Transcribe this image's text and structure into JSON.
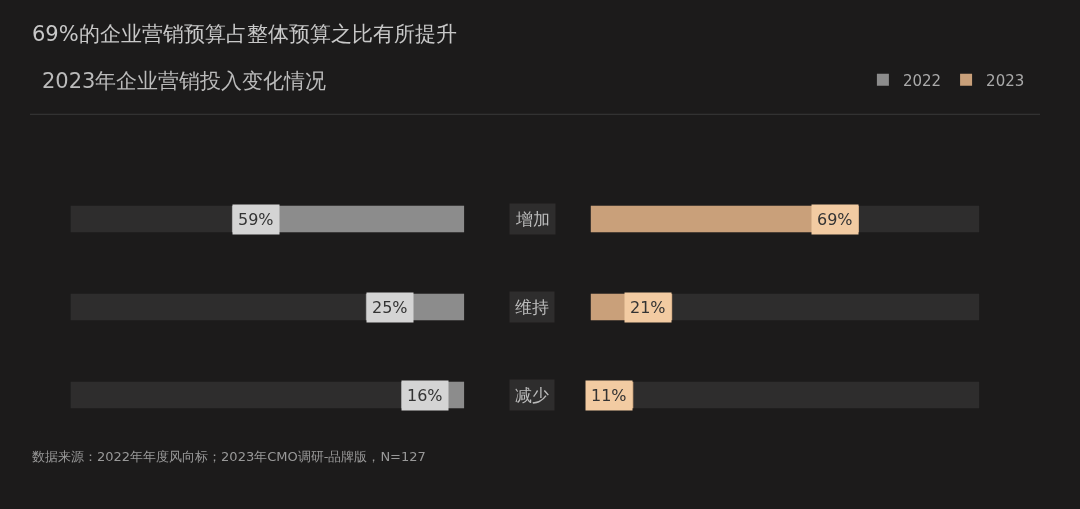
{
  "chart_data": [
    {
      "type": "bar",
      "orientation": "horizontal",
      "title": "69%的企业营销预算占整体预算之比有所提升",
      "subtitle": "2023年企业营销投入变化情况",
      "categories": [
        "增加",
        "维持",
        "减少"
      ],
      "series": [
        {
          "name": "2022",
          "color": "#8c8c8c",
          "values": [
            59,
            25,
            16
          ],
          "value_labels": [
            "59%",
            "25%",
            "16%"
          ]
        }
      ],
      "xlim": [
        100,
        0
      ],
      "legend": "top right",
      "annotations": [
        "数据来源：2022年年度风向标；2023年CMO调研-品牌版，N=127"
      ]
    },
    {
      "type": "bar",
      "orientation": "horizontal",
      "categories": [
        null,
        null,
        null
      ],
      "series": [
        {
          "name": "2023",
          "color": "#c9a07a",
          "values": [
            69,
            21,
            11
          ],
          "value_labels": [
            "69%",
            "21%",
            "11%"
          ]
        }
      ],
      "xlim": [
        0,
        100
      ],
      "legend": "top right"
    }
  ]
}
